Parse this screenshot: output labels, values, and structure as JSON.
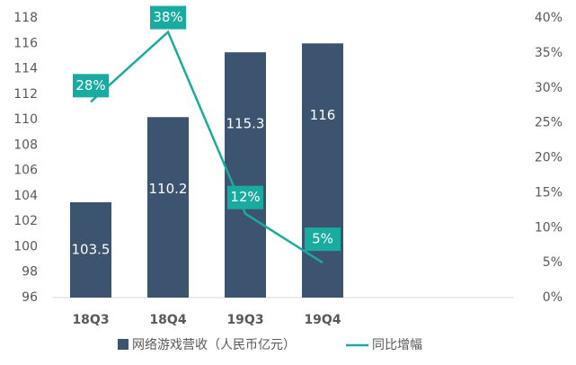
{
  "chart_data": {
    "type": "bar_line",
    "categories": [
      "18Q3",
      "18Q4",
      "19Q3",
      "19Q4"
    ],
    "series": [
      {
        "name": "网络游戏营收（人民币亿元）",
        "type": "bar",
        "color": "#3c5470",
        "values": [
          103.5,
          110.2,
          115.3,
          116
        ]
      },
      {
        "name": "同比增幅",
        "type": "line",
        "axis": "y2",
        "color": "#19ab9f",
        "values": [
          28,
          38,
          12,
          5
        ],
        "value_labels": [
          "28%",
          "38%",
          "12%",
          "5%"
        ]
      }
    ],
    "ylim": [
      96,
      118
    ],
    "yticks": [
      96,
      98,
      100,
      102,
      104,
      106,
      108,
      110,
      112,
      114,
      116,
      118
    ],
    "y2lim": [
      0,
      40
    ],
    "y2ticks": [
      {
        "value": 0,
        "label": "0%"
      },
      {
        "value": 5,
        "label": "5%"
      },
      {
        "value": 10,
        "label": "10%"
      },
      {
        "value": 15,
        "label": "15%"
      },
      {
        "value": 20,
        "label": "20%"
      },
      {
        "value": 25,
        "label": "25%"
      },
      {
        "value": 30,
        "label": "30%"
      },
      {
        "value": 35,
        "label": "35%"
      },
      {
        "value": 40,
        "label": "40%"
      }
    ],
    "grid": false,
    "legend": "bottom"
  }
}
